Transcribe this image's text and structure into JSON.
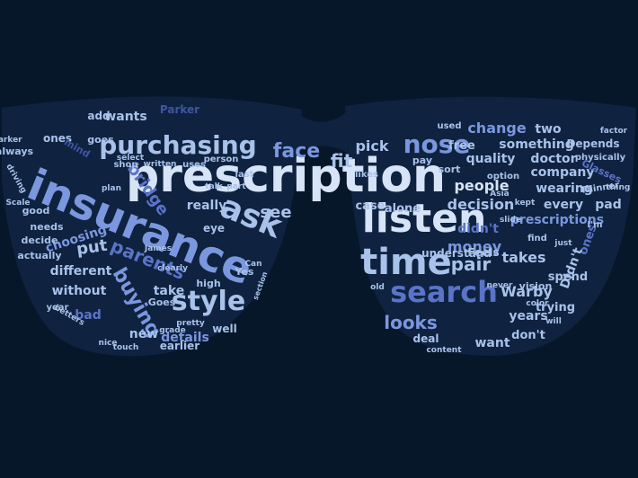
{
  "colors": {
    "background": "#07172a",
    "light": "#d7e4f7",
    "pale": "#a9c2ea",
    "mid": "#7b97de",
    "blue": "#5b74c8",
    "deep": "#3f55a3",
    "lens_fill": "#0f2340"
  },
  "words": [
    {
      "text": "prescription",
      "size": 52,
      "color": "light"
    },
    {
      "text": "insurance",
      "size": 48,
      "color": "mid"
    },
    {
      "text": "listen",
      "size": 44,
      "color": "light"
    },
    {
      "text": "time",
      "size": 40,
      "color": "pale"
    },
    {
      "text": "ask",
      "size": 36,
      "color": "pale"
    },
    {
      "text": "search",
      "size": 32,
      "color": "blue"
    },
    {
      "text": "style",
      "size": 30,
      "color": "pale"
    },
    {
      "text": "purchasing",
      "size": 28,
      "color": "pale"
    },
    {
      "text": "nose",
      "size": 28,
      "color": "mid"
    },
    {
      "text": "face",
      "size": 22,
      "color": "mid"
    },
    {
      "text": "fit",
      "size": 20,
      "color": "pale"
    },
    {
      "text": "buying",
      "size": 22,
      "color": "mid"
    },
    {
      "text": "parents",
      "size": 20,
      "color": "blue"
    },
    {
      "text": "looks",
      "size": 20,
      "color": "mid"
    },
    {
      "text": "pair",
      "size": 20,
      "color": "pale"
    },
    {
      "text": "decision",
      "size": 16,
      "color": "pale"
    },
    {
      "text": "money",
      "size": 16,
      "color": "mid"
    },
    {
      "text": "people",
      "size": 16,
      "color": "light"
    },
    {
      "text": "takes",
      "size": 16,
      "color": "pale"
    },
    {
      "text": "Warby",
      "size": 16,
      "color": "pale"
    },
    {
      "text": "bridge",
      "size": 18,
      "color": "blue"
    },
    {
      "text": "put",
      "size": 18,
      "color": "pale"
    },
    {
      "text": "see",
      "size": 18,
      "color": "pale"
    },
    {
      "text": "really",
      "size": 14,
      "color": "pale"
    },
    {
      "text": "choosing",
      "size": 14,
      "color": "mid"
    },
    {
      "text": "different",
      "size": 14,
      "color": "pale"
    },
    {
      "text": "without",
      "size": 14,
      "color": "pale"
    },
    {
      "text": "details",
      "size": 14,
      "color": "mid"
    },
    {
      "text": "new",
      "size": 14,
      "color": "pale"
    },
    {
      "text": "bad",
      "size": 14,
      "color": "blue"
    },
    {
      "text": "wants",
      "size": 14,
      "color": "pale"
    },
    {
      "text": "add",
      "size": 12,
      "color": "pale"
    },
    {
      "text": "Parker",
      "size": 12,
      "color": "deep"
    },
    {
      "text": "goes",
      "size": 11,
      "color": "pale"
    },
    {
      "text": "ones",
      "size": 12,
      "color": "pale"
    },
    {
      "text": "mind",
      "size": 11,
      "color": "deep"
    },
    {
      "text": "good",
      "size": 11,
      "color": "pale"
    },
    {
      "text": "needs",
      "size": 11,
      "color": "pale"
    },
    {
      "text": "decide",
      "size": 11,
      "color": "pale"
    },
    {
      "text": "actually",
      "size": 11,
      "color": "pale"
    },
    {
      "text": "take",
      "size": 14,
      "color": "pale"
    },
    {
      "text": "Goes",
      "size": 11,
      "color": "pale"
    },
    {
      "text": "earlier",
      "size": 12,
      "color": "pale"
    },
    {
      "text": "well",
      "size": 12,
      "color": "pale"
    },
    {
      "text": "high",
      "size": 11,
      "color": "pale"
    },
    {
      "text": "Yes",
      "size": 11,
      "color": "pale"
    },
    {
      "text": "eye",
      "size": 12,
      "color": "pale"
    },
    {
      "text": "pick",
      "size": 16,
      "color": "pale"
    },
    {
      "text": "change",
      "size": 16,
      "color": "mid"
    },
    {
      "text": "two",
      "size": 14,
      "color": "pale"
    },
    {
      "text": "quality",
      "size": 14,
      "color": "pale"
    },
    {
      "text": "doctor",
      "size": 14,
      "color": "pale"
    },
    {
      "text": "free",
      "size": 13,
      "color": "pale"
    },
    {
      "text": "something",
      "size": 14,
      "color": "pale"
    },
    {
      "text": "Depends",
      "size": 12,
      "color": "pale"
    },
    {
      "text": "company",
      "size": 14,
      "color": "pale"
    },
    {
      "text": "wearing",
      "size": 14,
      "color": "pale"
    },
    {
      "text": "prescriptions",
      "size": 14,
      "color": "mid"
    },
    {
      "text": "case",
      "size": 13,
      "color": "pale"
    },
    {
      "text": "alone",
      "size": 13,
      "color": "pale"
    },
    {
      "text": "every",
      "size": 14,
      "color": "pale"
    },
    {
      "text": "pad",
      "size": 14,
      "color": "pale"
    },
    {
      "text": "didn't",
      "size": 14,
      "color": "blue"
    },
    {
      "text": "understand",
      "size": 12,
      "color": "pale"
    },
    {
      "text": "Feels",
      "size": 12,
      "color": "pale"
    },
    {
      "text": "spend",
      "size": 13,
      "color": "pale"
    },
    {
      "text": "trying",
      "size": 13,
      "color": "pale"
    },
    {
      "text": "years",
      "size": 14,
      "color": "pale"
    },
    {
      "text": "want",
      "size": 14,
      "color": "pale"
    },
    {
      "text": "don't",
      "size": 13,
      "color": "pale"
    },
    {
      "text": "deal",
      "size": 12,
      "color": "pale"
    },
    {
      "text": "vision",
      "size": 11,
      "color": "pale"
    },
    {
      "text": "Glasses",
      "size": 11,
      "color": "blue"
    },
    {
      "text": "Thinner",
      "size": 10,
      "color": "pale"
    },
    {
      "text": "physically",
      "size": 10,
      "color": "pale"
    },
    {
      "text": "factor",
      "size": 9,
      "color": "pale"
    },
    {
      "text": "used",
      "size": 10,
      "color": "pale"
    },
    {
      "text": "option",
      "size": 10,
      "color": "pale"
    },
    {
      "text": "sort",
      "size": 11,
      "color": "pale"
    },
    {
      "text": "pay",
      "size": 11,
      "color": "pale"
    },
    {
      "text": "likes",
      "size": 10,
      "color": "pale"
    },
    {
      "text": "kept",
      "size": 9,
      "color": "pale"
    },
    {
      "text": "Asia",
      "size": 9,
      "color": "pale"
    },
    {
      "text": "just",
      "size": 9,
      "color": "pale"
    },
    {
      "text": "never",
      "size": 9,
      "color": "pale"
    },
    {
      "text": "color",
      "size": 9,
      "color": "pale"
    },
    {
      "text": "slide",
      "size": 9,
      "color": "pale"
    },
    {
      "text": "find",
      "size": 10,
      "color": "pale"
    },
    {
      "text": "ones",
      "size": 13,
      "color": "blue"
    },
    {
      "text": "Didn't",
      "size": 14,
      "color": "pale"
    },
    {
      "text": "thing",
      "size": 9,
      "color": "pale"
    },
    {
      "text": "I'm",
      "size": 10,
      "color": "pale"
    },
    {
      "text": "will",
      "size": 9,
      "color": "pale"
    },
    {
      "text": "old",
      "size": 9,
      "color": "pale"
    },
    {
      "text": "content",
      "size": 9,
      "color": "pale"
    },
    {
      "text": "always",
      "size": 11,
      "color": "pale"
    },
    {
      "text": "parker",
      "size": 9,
      "color": "pale"
    },
    {
      "text": "select",
      "size": 9,
      "color": "pale"
    },
    {
      "text": "shop",
      "size": 10,
      "color": "pale"
    },
    {
      "text": "written",
      "size": 9,
      "color": "pale"
    },
    {
      "text": "uses",
      "size": 10,
      "color": "pale"
    },
    {
      "text": "person",
      "size": 10,
      "color": "pale"
    },
    {
      "text": "last",
      "size": 10,
      "color": "pale"
    },
    {
      "text": "part",
      "size": 9,
      "color": "pale"
    },
    {
      "text": "talk",
      "size": 9,
      "color": "pale"
    },
    {
      "text": "plan",
      "size": 9,
      "color": "pale"
    },
    {
      "text": "Scale",
      "size": 9,
      "color": "pale"
    },
    {
      "text": "driving",
      "size": 9,
      "color": "pale"
    },
    {
      "text": "clearly",
      "size": 9,
      "color": "pale"
    },
    {
      "text": "James",
      "size": 9,
      "color": "pale"
    },
    {
      "text": "grade",
      "size": 9,
      "color": "pale"
    },
    {
      "text": "pretty",
      "size": 9,
      "color": "pale"
    },
    {
      "text": "touch",
      "size": 9,
      "color": "pale"
    },
    {
      "text": "nice",
      "size": 9,
      "color": "pale"
    },
    {
      "text": "betters",
      "size": 9,
      "color": "pale"
    },
    {
      "text": "year",
      "size": 10,
      "color": "pale"
    },
    {
      "text": "section",
      "size": 8,
      "color": "pale"
    },
    {
      "text": "Can",
      "size": 9,
      "color": "pale"
    },
    {
      "text": "ago",
      "size": 8,
      "color": "pale"
    }
  ]
}
